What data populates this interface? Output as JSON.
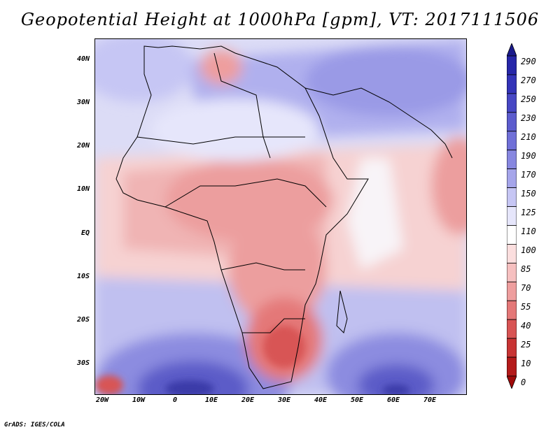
{
  "title": "Geopotential Height at 1000hPa [gpm], VT: 2017111506",
  "credit": "GrADS: IGES/COLA",
  "map": {
    "region": "Africa",
    "lon_range": [
      -22,
      80
    ],
    "lat_range": [
      -37,
      45
    ]
  },
  "lat_labels": [
    "40N",
    "30N",
    "20N",
    "10N",
    "EQ",
    "10S",
    "20S",
    "30S"
  ],
  "lat_values": [
    40,
    30,
    20,
    10,
    0,
    -10,
    -20,
    -30
  ],
  "lon_labels": [
    "20W",
    "10W",
    "0",
    "10E",
    "20E",
    "30E",
    "40E",
    "50E",
    "60E",
    "70E"
  ],
  "lon_values": [
    -20,
    -10,
    0,
    10,
    20,
    30,
    40,
    50,
    60,
    70
  ],
  "colorbar": {
    "levels": [
      "290",
      "270",
      "250",
      "230",
      "210",
      "190",
      "170",
      "150",
      "125",
      "110",
      "100",
      "85",
      "70",
      "55",
      "40",
      "25",
      "10",
      "0"
    ],
    "colors": [
      "#1a1a8c",
      "#2626a8",
      "#3333b8",
      "#4747c4",
      "#5c5cce",
      "#7070d8",
      "#8787e0",
      "#a5a5ea",
      "#c6c6f4",
      "#e6e6fb",
      "#ffffff",
      "#fbdede",
      "#f6c0c0",
      "#ee9e9e",
      "#e47878",
      "#d85454",
      "#c83434",
      "#b41a1a",
      "#a00a0a"
    ]
  }
}
